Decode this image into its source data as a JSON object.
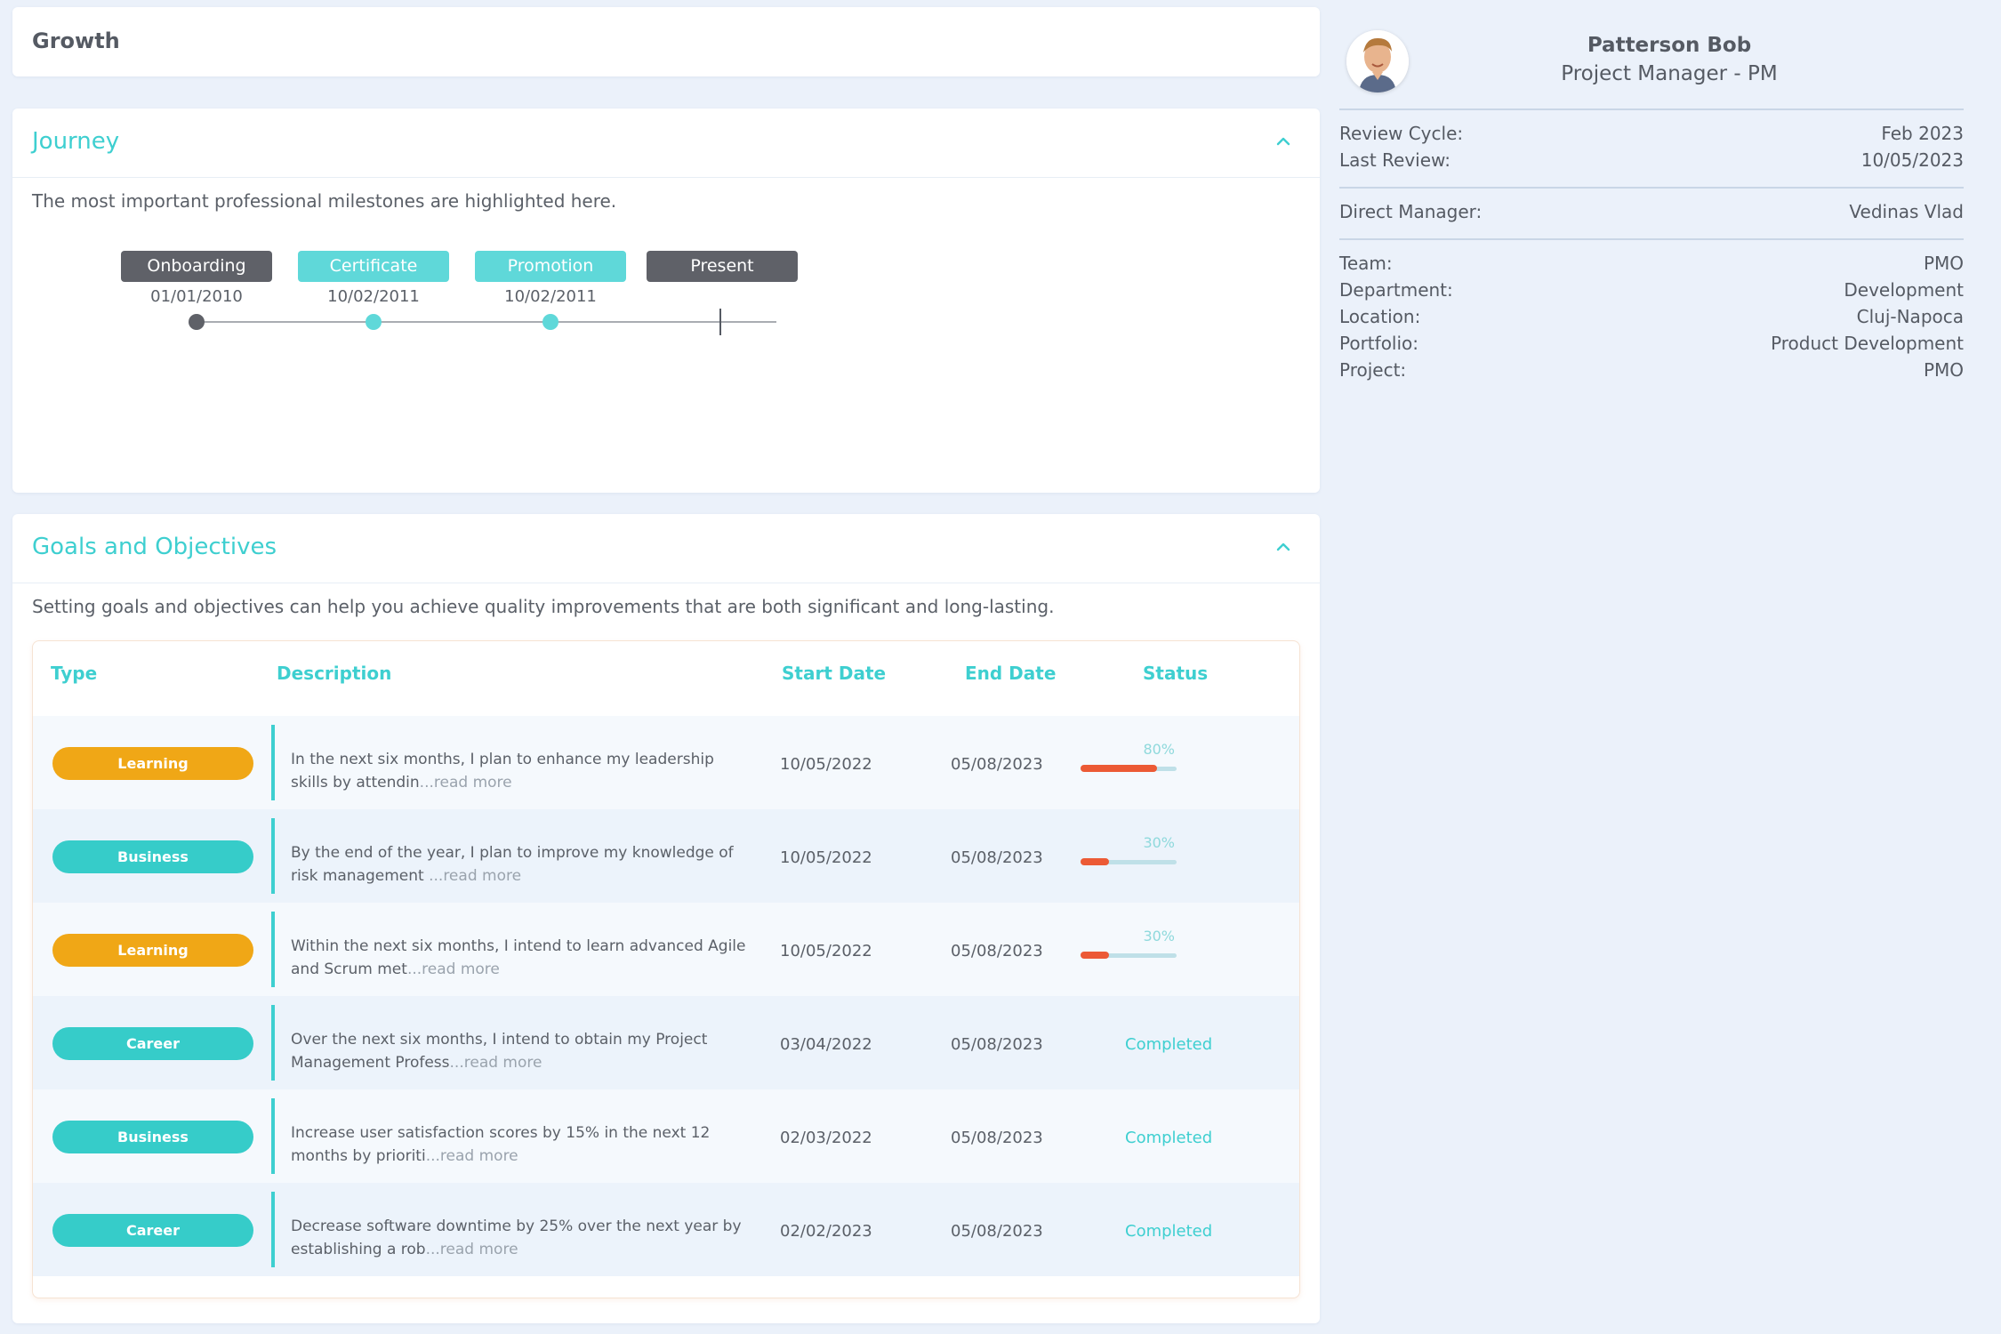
{
  "header": {
    "title": "Growth"
  },
  "journey": {
    "title": "Journey",
    "description": "The most important professional milestones are highlighted here.",
    "milestones": [
      {
        "label": "Onboarding",
        "date": "01/01/2010",
        "color": "#5f6168"
      },
      {
        "label": "Certificate",
        "date": "10/02/2011",
        "color": "#5fd8d9"
      },
      {
        "label": "Promotion",
        "date": "10/02/2011",
        "color": "#5fd8d9"
      },
      {
        "label": "Present",
        "date": "",
        "color": "#5f6168"
      }
    ]
  },
  "goals": {
    "title": "Goals and Objectives",
    "description": "Setting goals and objectives can help you achieve quality improvements that are both significant and long-lasting.",
    "columns": {
      "type": "Type",
      "description": "Description",
      "start": "Start Date",
      "end": "End Date",
      "status": "Status"
    },
    "rows": [
      {
        "type": "Learning",
        "type_key": "learning",
        "desc": "In the next six months, I plan to enhance my leadership skills by attendin",
        "more": "...read more",
        "start": "10/05/2022",
        "end": "05/08/2023",
        "status": "progress",
        "progress_label": "80%",
        "progress": 0.8
      },
      {
        "type": "Business",
        "type_key": "business",
        "desc": "By the end of the year, I plan to improve my knowledge of risk management ",
        "more": "...read more",
        "start": "10/05/2022",
        "end": "05/08/2023",
        "status": "progress",
        "progress_label": "30%",
        "progress": 0.3
      },
      {
        "type": "Learning",
        "type_key": "learning",
        "desc": "Within the next six months, I intend to learn advanced Agile and Scrum met",
        "more": "...read more",
        "start": "10/05/2022",
        "end": "05/08/2023",
        "status": "progress",
        "progress_label": "30%",
        "progress": 0.3
      },
      {
        "type": "Career",
        "type_key": "career",
        "desc": "Over the next six months, I intend to obtain my Project Management Profess",
        "more": "...read more",
        "start": "03/04/2022",
        "end": "05/08/2023",
        "status": "done",
        "status_label": "Completed"
      },
      {
        "type": "Business",
        "type_key": "business",
        "desc": "Increase user satisfaction scores by 15% in the next 12 months by prioriti",
        "more": "...read more",
        "start": "02/03/2022",
        "end": "05/08/2023",
        "status": "done",
        "status_label": "Completed"
      },
      {
        "type": "Career",
        "type_key": "career",
        "desc": "Decrease software downtime by 25% over the next year by establishing a rob",
        "more": "...read more",
        "start": "02/02/2023",
        "end": "05/08/2023",
        "status": "done",
        "status_label": "Completed"
      }
    ]
  },
  "profile": {
    "name": "Patterson Bob",
    "role": "Project Manager - PM",
    "groups": [
      [
        {
          "k": "Review Cycle:",
          "v": "Feb 2023"
        },
        {
          "k": "Last Review:",
          "v": "10/05/2023"
        }
      ],
      [
        {
          "k": "Direct Manager:",
          "v": "Vedinas Vlad"
        }
      ],
      [
        {
          "k": "Team:",
          "v": "PMO"
        },
        {
          "k": "Department:",
          "v": "Development"
        },
        {
          "k": "Location:",
          "v": "Cluj-Napoca"
        },
        {
          "k": "Portfolio:",
          "v": "Product Development"
        },
        {
          "k": "Project:",
          "v": "PMO"
        }
      ]
    ]
  },
  "colors": {
    "accent": "#3ecfd0",
    "learning": "#f0a716",
    "progress_fill": "#ec5a35"
  }
}
